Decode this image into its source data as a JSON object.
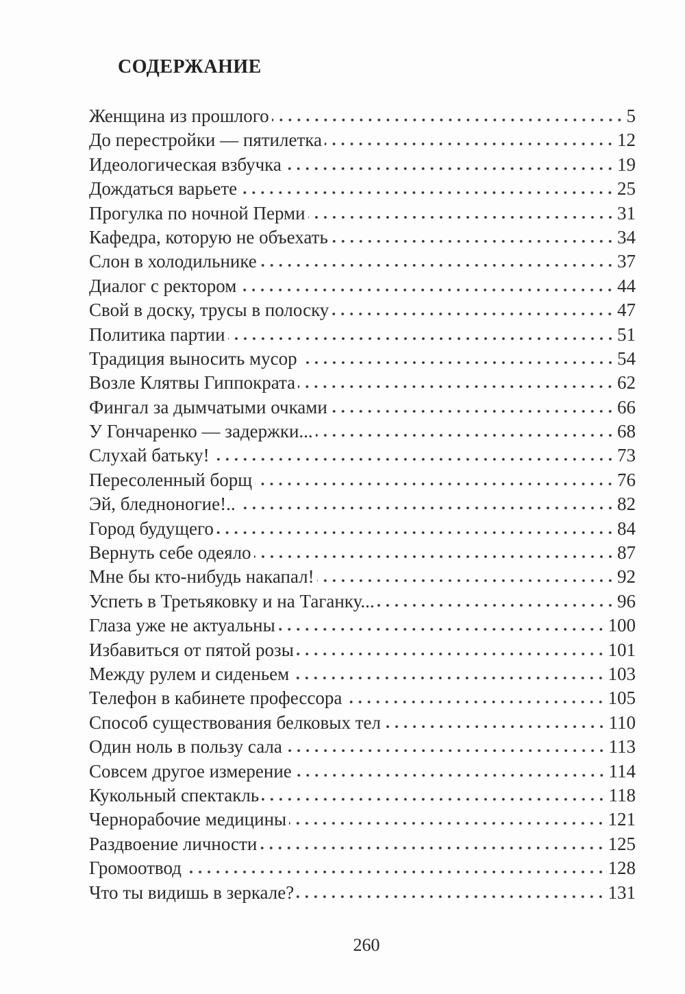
{
  "heading": "СОДЕРЖАНИЕ",
  "entries": [
    {
      "title": "Женщина из прошлого",
      "page": "5"
    },
    {
      "title": "До перестройки — пятилетка",
      "page": "12"
    },
    {
      "title": "Идеологическая взбучка",
      "page": "19"
    },
    {
      "title": "Дождаться варьете",
      "page": "25"
    },
    {
      "title": "Прогулка по ночной Перми",
      "page": "31"
    },
    {
      "title": "Кафедра, которую не объехать",
      "page": "34"
    },
    {
      "title": "Слон в холодильнике",
      "page": "37"
    },
    {
      "title": "Диалог с ректором",
      "page": "44"
    },
    {
      "title": "Свой в доску, трусы в полоску",
      "page": "47"
    },
    {
      "title": "Политика партии",
      "page": "51"
    },
    {
      "title": "Традиция выносить мусор",
      "page": "54"
    },
    {
      "title": "Возле Клятвы Гиппократа",
      "page": "62"
    },
    {
      "title": "Фингал за дымчатыми очками",
      "page": "66"
    },
    {
      "title": "У Гончаренко — задержки...",
      "page": "68"
    },
    {
      "title": "Слухай батьку!",
      "page": "73"
    },
    {
      "title": "Пересоленный борщ",
      "page": "76"
    },
    {
      "title": "Эй, бледноногие!..",
      "page": "82"
    },
    {
      "title": "Город будущего",
      "page": "84"
    },
    {
      "title": "Вернуть себе одеяло",
      "page": "87"
    },
    {
      "title": "Мне бы кто-нибудь накапал!",
      "page": "92"
    },
    {
      "title": "Успеть в Третьяковку и на Таганку...",
      "page": "96"
    },
    {
      "title": "Глаза уже не актуальны",
      "page": "100"
    },
    {
      "title": "Избавиться от пятой розы",
      "page": "101"
    },
    {
      "title": "Между рулем и сиденьем",
      "page": "103"
    },
    {
      "title": "Телефон в кабинете профессора",
      "page": "105"
    },
    {
      "title": "Способ существования белковых тел",
      "page": "110"
    },
    {
      "title": "Один ноль в пользу сала",
      "page": "113"
    },
    {
      "title": "Совсем другое измерение",
      "page": "114"
    },
    {
      "title": "Кукольный спектакль",
      "page": "118"
    },
    {
      "title": "Чернорабочие медицины",
      "page": "121"
    },
    {
      "title": "Раздвоение личности",
      "page": "125"
    },
    {
      "title": "Громоотвод",
      "page": "128"
    },
    {
      "title": "Что ты видишь в зеркале?",
      "page": "131"
    }
  ],
  "page_number": "260"
}
